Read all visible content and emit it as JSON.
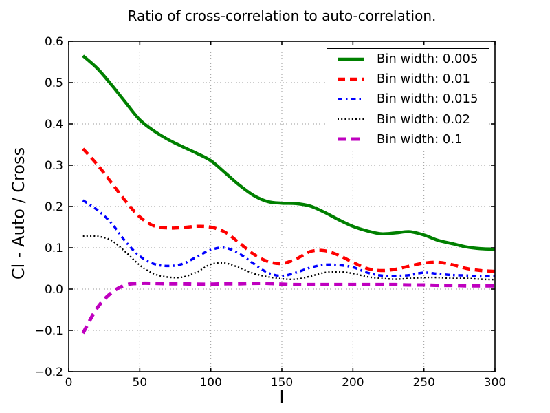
{
  "chart_data": {
    "type": "line",
    "title": "Ratio of cross-correlation to auto-correlation.",
    "xlabel": "l",
    "ylabel": "Cl - Auto / Cross",
    "xlim": [
      0,
      300
    ],
    "ylim": [
      -0.2,
      0.6
    ],
    "xticks": [
      0,
      50,
      100,
      150,
      200,
      250,
      300
    ],
    "xtick_labels": [
      "0",
      "50",
      "100",
      "150",
      "200",
      "250",
      "300"
    ],
    "yticks": [
      -0.2,
      -0.1,
      0.0,
      0.1,
      0.2,
      0.3,
      0.4,
      0.5,
      0.6
    ],
    "ytick_labels": [
      "−0.2",
      "−0.1",
      "0.0",
      "0.1",
      "0.2",
      "0.3",
      "0.4",
      "0.5",
      "0.6"
    ],
    "grid": true,
    "grid_color": "#9a9a9a",
    "axis_color": "#000000",
    "legend_position": "upper right",
    "x": [
      10,
      20,
      30,
      40,
      50,
      60,
      70,
      80,
      90,
      100,
      110,
      120,
      130,
      140,
      150,
      160,
      170,
      180,
      190,
      200,
      210,
      220,
      230,
      240,
      250,
      260,
      270,
      280,
      290,
      300
    ],
    "series": [
      {
        "name": "Bin width: 0.005",
        "color": "#008000",
        "line_style": "solid",
        "line_width": 4.5,
        "dash": null,
        "values": [
          0.565,
          0.535,
          0.495,
          0.452,
          0.41,
          0.383,
          0.362,
          0.345,
          0.329,
          0.311,
          0.282,
          0.252,
          0.227,
          0.212,
          0.208,
          0.207,
          0.201,
          0.186,
          0.168,
          0.152,
          0.141,
          0.134,
          0.136,
          0.139,
          0.131,
          0.118,
          0.11,
          0.102,
          0.098,
          0.097
        ]
      },
      {
        "name": "Bin width: 0.01",
        "color": "#ff0000",
        "line_style": "dashed",
        "line_width": 4.5,
        "dash": [
          11,
          7
        ],
        "values": [
          0.34,
          0.302,
          0.258,
          0.213,
          0.175,
          0.153,
          0.148,
          0.149,
          0.152,
          0.15,
          0.138,
          0.112,
          0.085,
          0.067,
          0.062,
          0.073,
          0.091,
          0.093,
          0.082,
          0.065,
          0.05,
          0.045,
          0.048,
          0.056,
          0.063,
          0.065,
          0.059,
          0.05,
          0.045,
          0.043
        ]
      },
      {
        "name": "Bin width: 0.015",
        "color": "#0000ff",
        "line_style": "dashdot",
        "line_width": 3.5,
        "dash": [
          7,
          5,
          2.5,
          5
        ],
        "values": [
          0.215,
          0.192,
          0.16,
          0.115,
          0.08,
          0.061,
          0.056,
          0.061,
          0.078,
          0.095,
          0.1,
          0.086,
          0.062,
          0.04,
          0.032,
          0.04,
          0.052,
          0.059,
          0.058,
          0.053,
          0.04,
          0.033,
          0.032,
          0.034,
          0.04,
          0.037,
          0.034,
          0.033,
          0.031,
          0.032
        ]
      },
      {
        "name": "Bin width: 0.02",
        "color": "#000000",
        "line_style": "dotted",
        "line_width": 2.4,
        "dash": [
          2,
          3.2
        ],
        "values": [
          0.128,
          0.128,
          0.118,
          0.09,
          0.058,
          0.037,
          0.029,
          0.029,
          0.041,
          0.06,
          0.063,
          0.052,
          0.038,
          0.03,
          0.025,
          0.024,
          0.031,
          0.04,
          0.042,
          0.038,
          0.03,
          0.026,
          0.024,
          0.026,
          0.028,
          0.028,
          0.026,
          0.026,
          0.024,
          0.023
        ]
      },
      {
        "name": "Bin width: 0.1",
        "color": "#bf00bf",
        "line_style": "dashed",
        "line_width": 5,
        "dash": [
          12,
          8
        ],
        "values": [
          -0.107,
          -0.046,
          -0.009,
          0.01,
          0.014,
          0.014,
          0.013,
          0.013,
          0.012,
          0.012,
          0.013,
          0.013,
          0.014,
          0.014,
          0.012,
          0.011,
          0.011,
          0.011,
          0.011,
          0.011,
          0.011,
          0.011,
          0.011,
          0.01,
          0.01,
          0.009,
          0.009,
          0.008,
          0.008,
          0.008
        ]
      }
    ]
  }
}
